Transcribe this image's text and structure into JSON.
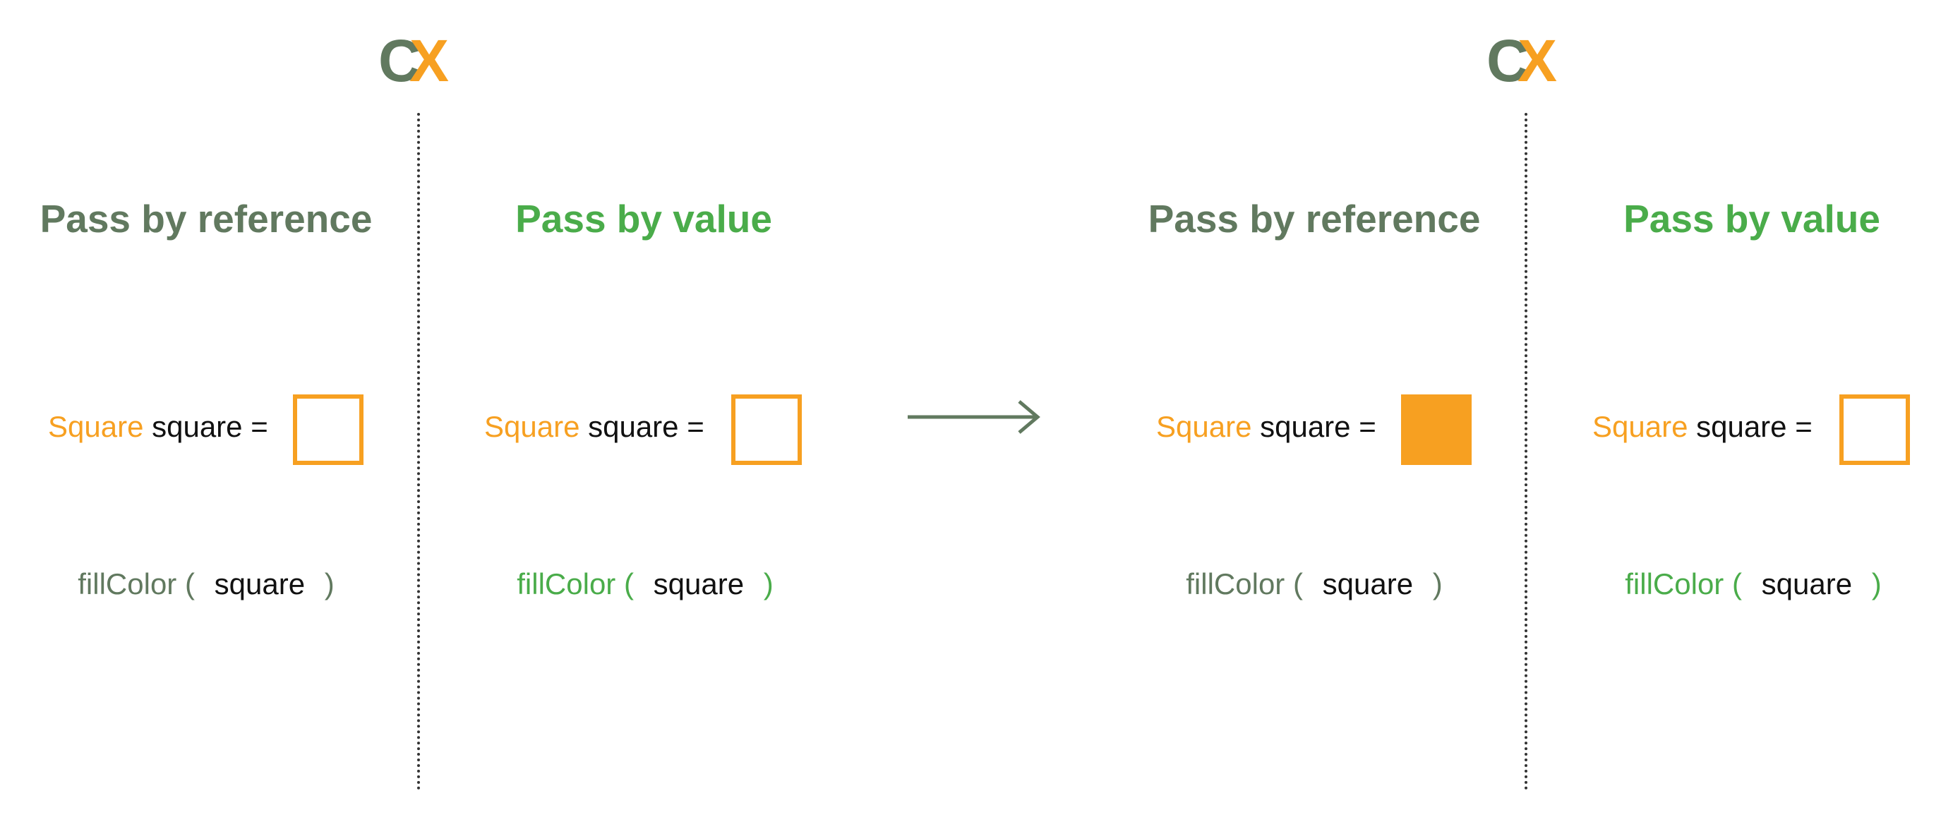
{
  "colors": {
    "dark_green": "#61795f",
    "bright_green": "#4aac4a",
    "orange": "#f7a021",
    "text": "#111111"
  },
  "logo": {
    "c": "C",
    "x": "X"
  },
  "labels": {
    "pass_by_reference": "Pass by reference",
    "pass_by_value": "Pass by value",
    "type_name": "Square",
    "declaration": "square =",
    "function_name": "fillColor",
    "open_paren": "(",
    "argument": "square",
    "close_paren": ")"
  },
  "panels": [
    {
      "id": "before",
      "reference_square": "empty",
      "value_square": "empty"
    },
    {
      "id": "after",
      "reference_square": "filled",
      "value_square": "empty"
    }
  ],
  "arrow": {
    "icon": "arrow-right-icon"
  }
}
